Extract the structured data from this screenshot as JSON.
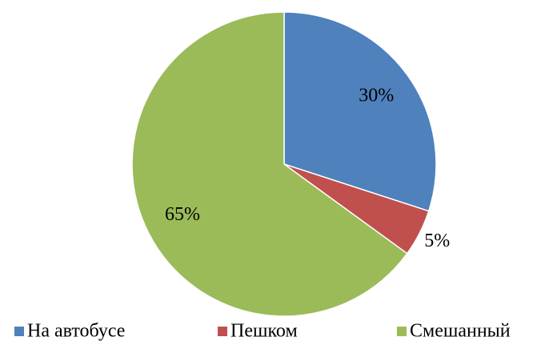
{
  "chart_data": {
    "type": "pie",
    "categories": [
      "На автобусе",
      "Пешком",
      "Смешанный"
    ],
    "values": [
      30,
      5,
      65
    ],
    "value_labels": [
      "30%",
      "5%",
      "65%"
    ],
    "colors": [
      "#4f81bd",
      "#c0504d",
      "#9bbb59"
    ],
    "legend": "bottom"
  }
}
